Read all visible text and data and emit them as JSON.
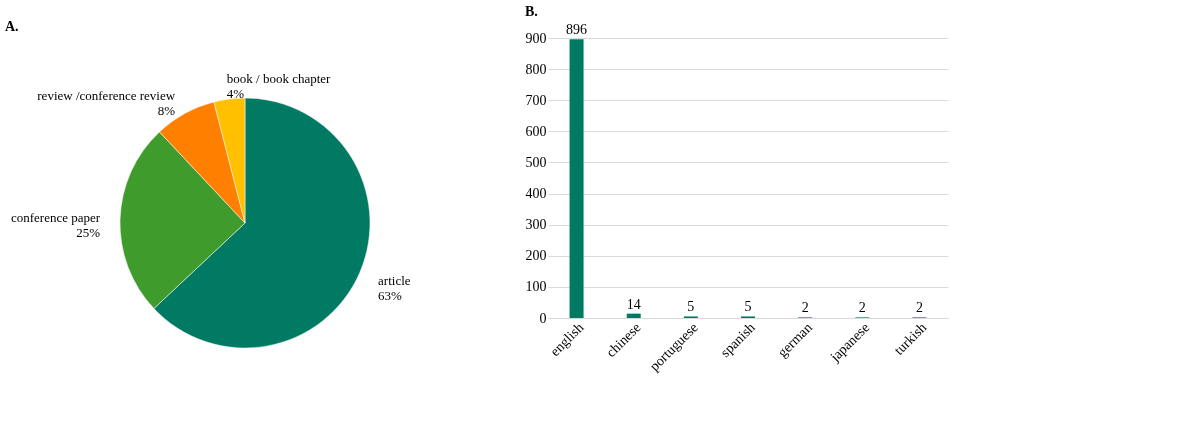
{
  "chart_data": [
    {
      "type": "pie",
      "title": "A.",
      "categories": [
        "article",
        "conference paper",
        "review /conference review",
        "book / book chapter"
      ],
      "values": [
        63,
        25,
        8,
        4
      ],
      "value_labels": [
        "63%",
        "25%",
        "8%",
        "4%"
      ],
      "colors": [
        "#007a63",
        "#3f9c2c",
        "#ff7f00",
        "#ffc000"
      ],
      "legend": false
    },
    {
      "type": "bar",
      "title": "B.",
      "categories": [
        "english",
        "chinese",
        "portuguese",
        "spanish",
        "german",
        "japanese",
        "turkish"
      ],
      "values": [
        896,
        14,
        5,
        5,
        2,
        2,
        2
      ],
      "color": "#007a63",
      "ylim": [
        0,
        900
      ],
      "yticks": [
        0,
        100,
        200,
        300,
        400,
        500,
        600,
        700,
        800,
        900
      ],
      "grid": "y",
      "data_labels": true
    }
  ]
}
